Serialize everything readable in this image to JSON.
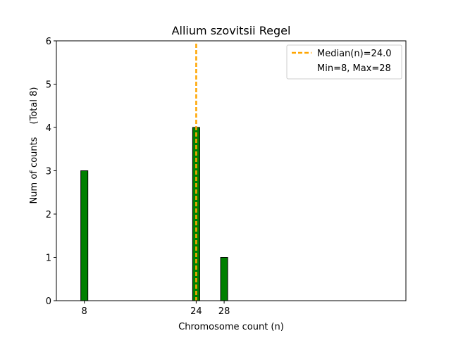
{
  "chart_data": {
    "type": "bar",
    "title": "Allium szovitsii Regel",
    "xlabel": "Chromosome count (n)",
    "ylabel": "Num of counts",
    "ylabel_note": "(Total 8)",
    "xlim": [
      4,
      54
    ],
    "ylim": [
      0,
      6
    ],
    "x": [
      8,
      24,
      28
    ],
    "values": [
      3,
      4,
      1
    ],
    "x_ticks": [
      8,
      24,
      28
    ],
    "y_ticks": [
      0,
      1,
      2,
      3,
      4,
      5,
      6
    ],
    "bar_color": "#008000",
    "bar_edge_color": "#000000",
    "median": 24.0,
    "median_color": "#ffa500",
    "grid": false,
    "legend_position": "top-right",
    "legend": {
      "median_label": "Median(n)=24.0",
      "minmax_label": "Min=8, Max=28"
    }
  }
}
